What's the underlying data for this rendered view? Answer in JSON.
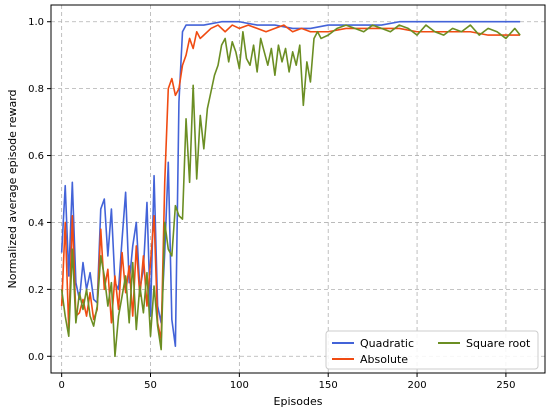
{
  "chart_data": {
    "type": "line",
    "xlabel": "Episodes",
    "ylabel": "Normalized average episode reward",
    "xlim": [
      -6,
      272
    ],
    "ylim": [
      -0.05,
      1.05
    ],
    "xticks": [
      0,
      50,
      100,
      150,
      200,
      250
    ],
    "yticks": [
      0.0,
      0.2,
      0.4,
      0.6,
      0.8,
      1.0
    ],
    "grid": true,
    "legend_position": "lower-right",
    "series": [
      {
        "name": "Quadratic",
        "color": "#4363d8",
        "points": [
          [
            0,
            0.31
          ],
          [
            2,
            0.51
          ],
          [
            4,
            0.24
          ],
          [
            6,
            0.52
          ],
          [
            8,
            0.22
          ],
          [
            10,
            0.17
          ],
          [
            12,
            0.28
          ],
          [
            14,
            0.2
          ],
          [
            16,
            0.25
          ],
          [
            18,
            0.17
          ],
          [
            20,
            0.16
          ],
          [
            22,
            0.44
          ],
          [
            24,
            0.47
          ],
          [
            26,
            0.3
          ],
          [
            28,
            0.44
          ],
          [
            30,
            0.22
          ],
          [
            32,
            0.2
          ],
          [
            34,
            0.35
          ],
          [
            36,
            0.49
          ],
          [
            38,
            0.22
          ],
          [
            40,
            0.33
          ],
          [
            42,
            0.4
          ],
          [
            44,
            0.2
          ],
          [
            46,
            0.26
          ],
          [
            48,
            0.46
          ],
          [
            50,
            0.12
          ],
          [
            52,
            0.54
          ],
          [
            54,
            0.15
          ],
          [
            56,
            0.1
          ],
          [
            58,
            0.31
          ],
          [
            60,
            0.58
          ],
          [
            62,
            0.11
          ],
          [
            64,
            0.03
          ],
          [
            66,
            0.76
          ],
          [
            68,
            0.97
          ],
          [
            70,
            0.99
          ],
          [
            75,
            0.99
          ],
          [
            80,
            0.99
          ],
          [
            90,
            1.0
          ],
          [
            100,
            1.0
          ],
          [
            110,
            0.99
          ],
          [
            120,
            0.99
          ],
          [
            130,
            0.98
          ],
          [
            140,
            0.98
          ],
          [
            150,
            0.99
          ],
          [
            160,
            0.99
          ],
          [
            170,
            0.99
          ],
          [
            180,
            0.99
          ],
          [
            190,
            1.0
          ],
          [
            200,
            1.0
          ],
          [
            210,
            1.0
          ],
          [
            220,
            1.0
          ],
          [
            230,
            1.0
          ],
          [
            240,
            1.0
          ],
          [
            250,
            1.0
          ],
          [
            258,
            1.0
          ]
        ]
      },
      {
        "name": "Absolute",
        "color": "#f04b12",
        "points": [
          [
            0,
            0.15
          ],
          [
            2,
            0.4
          ],
          [
            4,
            0.08
          ],
          [
            6,
            0.42
          ],
          [
            8,
            0.12
          ],
          [
            10,
            0.13
          ],
          [
            12,
            0.17
          ],
          [
            14,
            0.12
          ],
          [
            16,
            0.19
          ],
          [
            18,
            0.11
          ],
          [
            20,
            0.14
          ],
          [
            22,
            0.38
          ],
          [
            24,
            0.2
          ],
          [
            26,
            0.26
          ],
          [
            28,
            0.1
          ],
          [
            30,
            0.24
          ],
          [
            32,
            0.14
          ],
          [
            34,
            0.31
          ],
          [
            36,
            0.19
          ],
          [
            38,
            0.27
          ],
          [
            40,
            0.12
          ],
          [
            42,
            0.33
          ],
          [
            44,
            0.18
          ],
          [
            46,
            0.3
          ],
          [
            48,
            0.15
          ],
          [
            50,
            0.28
          ],
          [
            52,
            0.42
          ],
          [
            54,
            0.1
          ],
          [
            56,
            0.05
          ],
          [
            58,
            0.52
          ],
          [
            60,
            0.8
          ],
          [
            62,
            0.83
          ],
          [
            64,
            0.78
          ],
          [
            66,
            0.8
          ],
          [
            68,
            0.87
          ],
          [
            70,
            0.9
          ],
          [
            72,
            0.95
          ],
          [
            74,
            0.92
          ],
          [
            76,
            0.97
          ],
          [
            78,
            0.95
          ],
          [
            80,
            0.96
          ],
          [
            84,
            0.98
          ],
          [
            88,
            0.99
          ],
          [
            92,
            0.97
          ],
          [
            96,
            0.99
          ],
          [
            100,
            0.98
          ],
          [
            105,
            0.99
          ],
          [
            110,
            0.98
          ],
          [
            115,
            0.97
          ],
          [
            120,
            0.98
          ],
          [
            125,
            0.99
          ],
          [
            130,
            0.97
          ],
          [
            135,
            0.98
          ],
          [
            140,
            0.97
          ],
          [
            150,
            0.97
          ],
          [
            160,
            0.98
          ],
          [
            170,
            0.98
          ],
          [
            180,
            0.98
          ],
          [
            190,
            0.98
          ],
          [
            200,
            0.97
          ],
          [
            210,
            0.97
          ],
          [
            220,
            0.97
          ],
          [
            230,
            0.97
          ],
          [
            240,
            0.96
          ],
          [
            250,
            0.96
          ],
          [
            258,
            0.96
          ]
        ]
      },
      {
        "name": "Square root",
        "color": "#6b8e23",
        "points": [
          [
            0,
            0.2
          ],
          [
            2,
            0.12
          ],
          [
            4,
            0.06
          ],
          [
            6,
            0.32
          ],
          [
            8,
            0.1
          ],
          [
            10,
            0.19
          ],
          [
            12,
            0.14
          ],
          [
            14,
            0.2
          ],
          [
            16,
            0.12
          ],
          [
            18,
            0.09
          ],
          [
            20,
            0.15
          ],
          [
            22,
            0.3
          ],
          [
            24,
            0.24
          ],
          [
            26,
            0.15
          ],
          [
            28,
            0.22
          ],
          [
            30,
            0.0
          ],
          [
            32,
            0.12
          ],
          [
            34,
            0.18
          ],
          [
            36,
            0.24
          ],
          [
            38,
            0.1
          ],
          [
            40,
            0.28
          ],
          [
            42,
            0.08
          ],
          [
            44,
            0.21
          ],
          [
            46,
            0.13
          ],
          [
            48,
            0.25
          ],
          [
            50,
            0.06
          ],
          [
            52,
            0.21
          ],
          [
            54,
            0.09
          ],
          [
            56,
            0.02
          ],
          [
            58,
            0.4
          ],
          [
            60,
            0.32
          ],
          [
            62,
            0.3
          ],
          [
            64,
            0.45
          ],
          [
            66,
            0.42
          ],
          [
            68,
            0.41
          ],
          [
            70,
            0.71
          ],
          [
            72,
            0.52
          ],
          [
            74,
            0.81
          ],
          [
            76,
            0.53
          ],
          [
            78,
            0.72
          ],
          [
            80,
            0.62
          ],
          [
            82,
            0.74
          ],
          [
            84,
            0.79
          ],
          [
            86,
            0.84
          ],
          [
            88,
            0.87
          ],
          [
            90,
            0.93
          ],
          [
            92,
            0.95
          ],
          [
            94,
            0.88
          ],
          [
            96,
            0.94
          ],
          [
            98,
            0.91
          ],
          [
            100,
            0.86
          ],
          [
            102,
            0.97
          ],
          [
            104,
            0.89
          ],
          [
            106,
            0.87
          ],
          [
            108,
            0.93
          ],
          [
            110,
            0.85
          ],
          [
            112,
            0.95
          ],
          [
            114,
            0.91
          ],
          [
            116,
            0.87
          ],
          [
            118,
            0.92
          ],
          [
            120,
            0.84
          ],
          [
            122,
            0.93
          ],
          [
            124,
            0.88
          ],
          [
            126,
            0.92
          ],
          [
            128,
            0.85
          ],
          [
            130,
            0.91
          ],
          [
            132,
            0.87
          ],
          [
            134,
            0.93
          ],
          [
            136,
            0.75
          ],
          [
            138,
            0.88
          ],
          [
            140,
            0.82
          ],
          [
            142,
            0.95
          ],
          [
            144,
            0.97
          ],
          [
            146,
            0.95
          ],
          [
            150,
            0.96
          ],
          [
            155,
            0.98
          ],
          [
            160,
            0.99
          ],
          [
            165,
            0.98
          ],
          [
            170,
            0.97
          ],
          [
            175,
            0.99
          ],
          [
            180,
            0.98
          ],
          [
            185,
            0.97
          ],
          [
            190,
            0.99
          ],
          [
            195,
            0.98
          ],
          [
            200,
            0.96
          ],
          [
            205,
            0.99
          ],
          [
            210,
            0.97
          ],
          [
            215,
            0.96
          ],
          [
            220,
            0.98
          ],
          [
            225,
            0.97
          ],
          [
            230,
            0.99
          ],
          [
            235,
            0.96
          ],
          [
            240,
            0.98
          ],
          [
            245,
            0.97
          ],
          [
            250,
            0.95
          ],
          [
            255,
            0.98
          ],
          [
            258,
            0.96
          ]
        ]
      }
    ]
  }
}
